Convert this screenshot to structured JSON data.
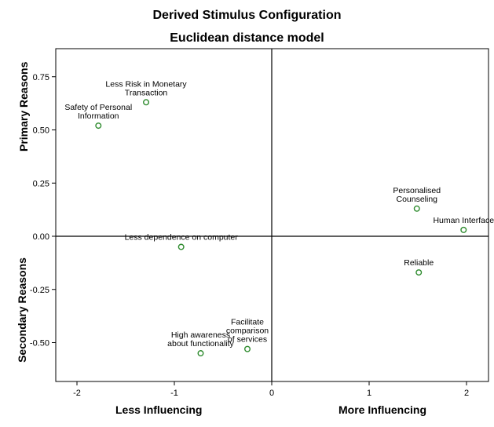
{
  "chart_data": {
    "type": "scatter",
    "title": "Derived Stimulus Configuration",
    "subtitle": "Euclidean distance model",
    "xlabel_left": "Less Influencing",
    "xlabel_right": "More Influencing",
    "ylabel_top": "Primary Reasons",
    "ylabel_bottom": "Secondary Reasons",
    "xlim": [
      -2.2,
      2.25
    ],
    "ylim": [
      -0.67,
      0.87
    ],
    "x_ticks": [
      -2,
      -1,
      0,
      1,
      2
    ],
    "x_tick_labels": [
      "-2",
      "-1",
      "0",
      "1",
      "2"
    ],
    "y_ticks": [
      0.75,
      0.5,
      0.25,
      0.0,
      -0.25,
      -0.5
    ],
    "y_tick_labels": [
      "0.75",
      "0.50",
      "0.25",
      "0.00",
      "-0.25",
      "-0.50"
    ],
    "grid": false,
    "marker_color": "#2e8b2e",
    "points": [
      {
        "label": "Less Risk in Monetary\nTransaction",
        "x": -1.29,
        "y": 0.63
      },
      {
        "label": "Safety of Personal\nInformation",
        "x": -1.78,
        "y": 0.52
      },
      {
        "label": "Personalised\nCounseling",
        "x": 1.49,
        "y": 0.13
      },
      {
        "label": "Human Interface",
        "x": 1.97,
        "y": 0.03
      },
      {
        "label": "Less dependence on computer",
        "x": -0.93,
        "y": -0.05
      },
      {
        "label": "Reliable",
        "x": 1.51,
        "y": -0.17
      },
      {
        "label": "Facilitate\ncomparison\nof services",
        "x": -0.25,
        "y": -0.53
      },
      {
        "label": "High awareness\nabout functionality",
        "x": -0.73,
        "y": -0.55
      }
    ]
  }
}
